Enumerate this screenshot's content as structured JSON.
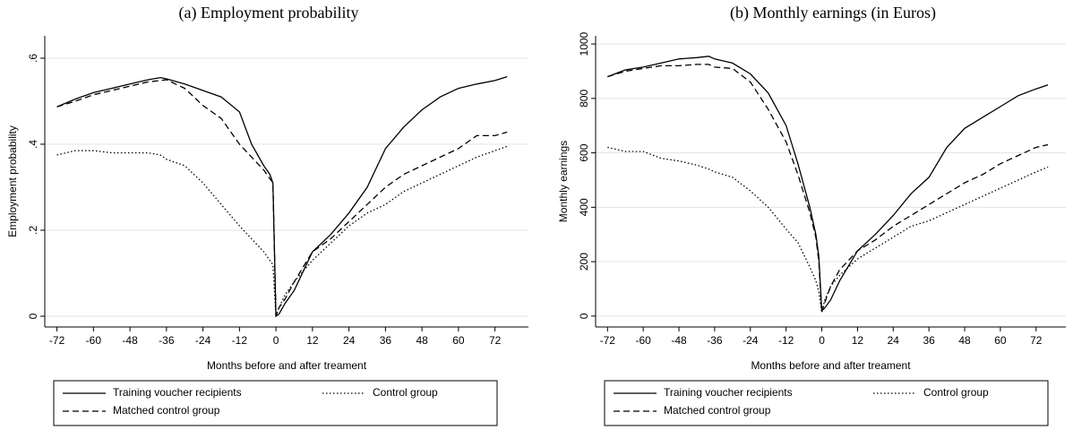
{
  "chart_data": [
    {
      "type": "line",
      "title": "(a) Employment probability",
      "xlabel": "Months before and after treament",
      "ylabel": "Employment probability",
      "x": [
        -72,
        -66,
        -60,
        -54,
        -48,
        -42,
        -38,
        -36,
        -30,
        -24,
        -18,
        -12,
        -8,
        -4,
        -2,
        -1,
        0,
        1,
        3,
        6,
        12,
        18,
        24,
        30,
        36,
        42,
        48,
        54,
        60,
        66,
        72,
        76
      ],
      "series": [
        {
          "name": "Training voucher recipients",
          "color": "#000000",
          "dash": "solid",
          "values": [
            0.487,
            0.505,
            0.52,
            0.53,
            0.54,
            0.55,
            0.555,
            0.552,
            0.54,
            0.525,
            0.51,
            0.475,
            0.4,
            0.35,
            0.33,
            0.31,
            0,
            0.005,
            0.03,
            0.06,
            0.15,
            0.19,
            0.24,
            0.3,
            0.39,
            0.44,
            0.48,
            0.51,
            0.53,
            0.54,
            0.548,
            0.557
          ]
        },
        {
          "name": "Control group",
          "color": "#000000",
          "dash": "dot",
          "values": [
            0.375,
            0.385,
            0.385,
            0.38,
            0.38,
            0.38,
            0.375,
            0.365,
            0.35,
            0.31,
            0.26,
            0.21,
            0.18,
            0.15,
            0.13,
            0.12,
            0,
            0.02,
            0.05,
            0.08,
            0.13,
            0.17,
            0.21,
            0.24,
            0.26,
            0.29,
            0.31,
            0.33,
            0.35,
            0.37,
            0.385,
            0.395
          ]
        },
        {
          "name": "Matched control group",
          "color": "#000000",
          "dash": "dash",
          "values": [
            0.487,
            0.5,
            0.515,
            0.525,
            0.535,
            0.545,
            0.548,
            0.55,
            0.53,
            0.49,
            0.46,
            0.4,
            0.37,
            0.34,
            0.32,
            0.31,
            0,
            0.02,
            0.04,
            0.08,
            0.15,
            0.18,
            0.22,
            0.26,
            0.3,
            0.33,
            0.35,
            0.37,
            0.39,
            0.42,
            0.42,
            0.428
          ]
        }
      ],
      "xlim": [
        -76,
        83
      ],
      "ylim": [
        -0.025,
        0.652
      ],
      "xticks": [
        -72,
        -60,
        -48,
        -36,
        -24,
        -12,
        0,
        12,
        24,
        36,
        48,
        60,
        72
      ],
      "yticks": [
        0,
        {
          "value": 0.2,
          "label": ".2"
        },
        {
          "value": 0.4,
          "label": ".4"
        },
        {
          "value": 0.6,
          "label": ".6"
        }
      ],
      "grid": true
    },
    {
      "type": "line",
      "title": "(b) Monthly earnings (in Euros)",
      "xlabel": "Months before and after treament",
      "ylabel": "Monthly earnings",
      "x": [
        -72,
        -66,
        -60,
        -54,
        -48,
        -42,
        -38,
        -36,
        -30,
        -24,
        -18,
        -12,
        -8,
        -4,
        -2,
        -1,
        0,
        1,
        3,
        6,
        12,
        18,
        24,
        30,
        36,
        42,
        48,
        54,
        60,
        66,
        72,
        76
      ],
      "series": [
        {
          "name": "Training voucher recipients",
          "color": "#000000",
          "dash": "solid",
          "values": [
            880,
            905,
            915,
            930,
            945,
            950,
            955,
            945,
            930,
            890,
            820,
            700,
            560,
            400,
            300,
            220,
            20,
            30,
            60,
            130,
            240,
            300,
            370,
            450,
            510,
            620,
            690,
            730,
            770,
            810,
            835,
            850
          ]
        },
        {
          "name": "Control group",
          "color": "#000000",
          "dash": "dot",
          "values": [
            620,
            605,
            605,
            580,
            570,
            555,
            540,
            530,
            510,
            460,
            400,
            320,
            270,
            180,
            130,
            90,
            15,
            60,
            110,
            150,
            210,
            250,
            290,
            330,
            350,
            380,
            410,
            440,
            470,
            500,
            530,
            548
          ]
        },
        {
          "name": "Matched control group",
          "color": "#000000",
          "dash": "dash",
          "values": [
            880,
            900,
            910,
            920,
            920,
            925,
            925,
            915,
            910,
            860,
            760,
            640,
            520,
            380,
            290,
            200,
            15,
            50,
            110,
            170,
            240,
            280,
            330,
            370,
            410,
            450,
            490,
            520,
            560,
            590,
            620,
            630
          ]
        }
      ],
      "xlim": [
        -76,
        82
      ],
      "ylim": [
        -40,
        1030
      ],
      "xticks": [
        -72,
        -60,
        -48,
        -36,
        -24,
        -12,
        0,
        12,
        24,
        36,
        48,
        60,
        72
      ],
      "yticks": [
        0,
        200,
        400,
        600,
        800,
        1000
      ],
      "grid": true
    }
  ]
}
